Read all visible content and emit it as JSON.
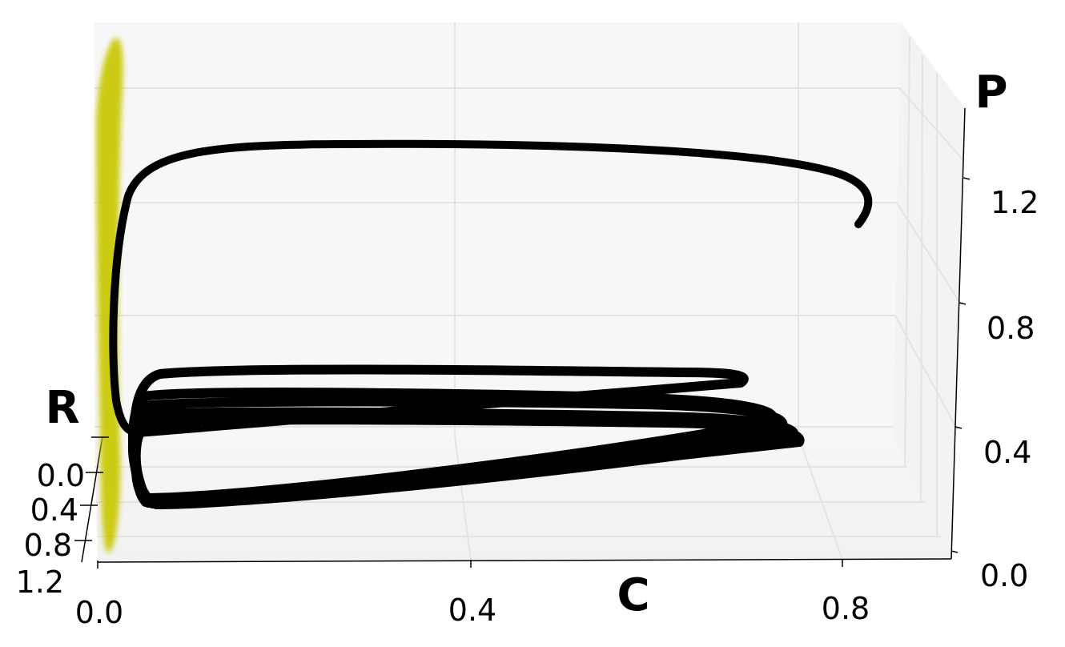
{
  "chart_data": {
    "type": "line",
    "projection": "3d",
    "title": "",
    "axes": {
      "x": {
        "label": "C",
        "ticks": [
          "0.0",
          "0.4",
          "0.8"
        ]
      },
      "y": {
        "label": "R",
        "ticks": [
          "0.0",
          "0.4",
          "0.8",
          "1.2"
        ]
      },
      "z": {
        "label": "P",
        "ticks": [
          "0.0",
          "0.4",
          "0.8",
          "1.2"
        ]
      }
    },
    "grid": true,
    "legend": "none",
    "series": [
      {
        "color": "#000000",
        "description_shape": "trajectory spiralling from C≈0.82, P≈1.2 into a limit cycle with C in [0.04, 0.76], P in [0.25, 0.5]"
      }
    ],
    "surface": {
      "color": "#c8c800",
      "plane": "C = 0"
    },
    "colors": {
      "trajectory": "#000000",
      "surface": "#c8c800",
      "pane": "#f4f4f4",
      "grid": "#e2e2e2"
    }
  }
}
